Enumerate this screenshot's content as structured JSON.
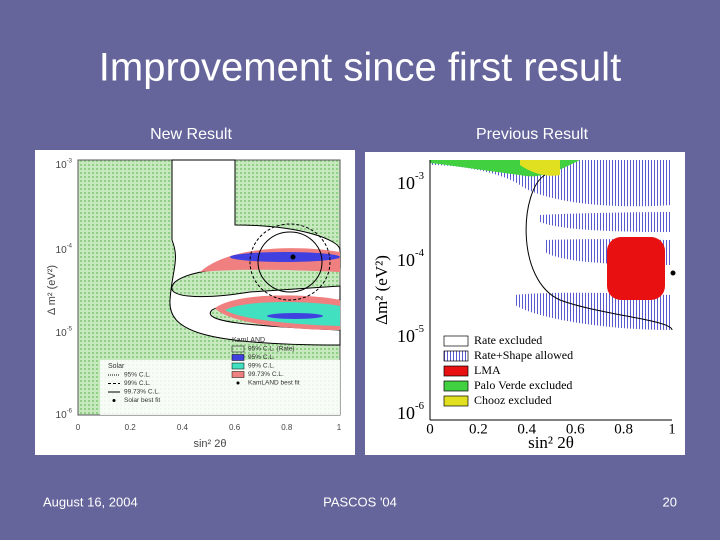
{
  "title": "Improvement since first result",
  "panels": [
    {
      "label": "New Result",
      "x_label": "sin² 2θ",
      "y_label": "Δ m² (eV²)",
      "xticks": [
        "0",
        "0.2",
        "0.4",
        "0.6",
        "0.8",
        "1"
      ],
      "yticks": [
        {
          "base": "10",
          "exp": "-3"
        },
        {
          "base": "10",
          "exp": "-4"
        },
        {
          "base": "10",
          "exp": "-5"
        },
        {
          "base": "10",
          "exp": "-6"
        }
      ],
      "legend_groups": [
        {
          "title": "Solar",
          "entries": [
            "95% C.L.",
            "99% C.L.",
            "99.73% C.L.",
            "Solar best fit"
          ]
        },
        {
          "title": "KamLAND",
          "entries": [
            "95% C.L. (Rate)",
            "95% C.L.",
            "99% C.L.",
            "99.73% C.L.",
            "KamLAND best fit"
          ]
        }
      ]
    },
    {
      "label": "Previous Result",
      "x_label": "sin² 2θ",
      "y_label": "Δm² (eV²)",
      "xticks": [
        "0",
        "0.2",
        "0.4",
        "0.6",
        "0.8",
        "1"
      ],
      "yticks": [
        {
          "base": "10",
          "exp": "-3"
        },
        {
          "base": "10",
          "exp": "-4"
        },
        {
          "base": "10",
          "exp": "-5"
        },
        {
          "base": "10",
          "exp": "-6"
        }
      ],
      "legend": [
        "Rate excluded",
        "Rate+Shape allowed",
        "LMA",
        "Palo Verde excluded",
        "Chooz excluded"
      ]
    }
  ],
  "footer": {
    "date": "August 16, 2004",
    "venue": "PASCOS '04",
    "page": "20"
  }
}
